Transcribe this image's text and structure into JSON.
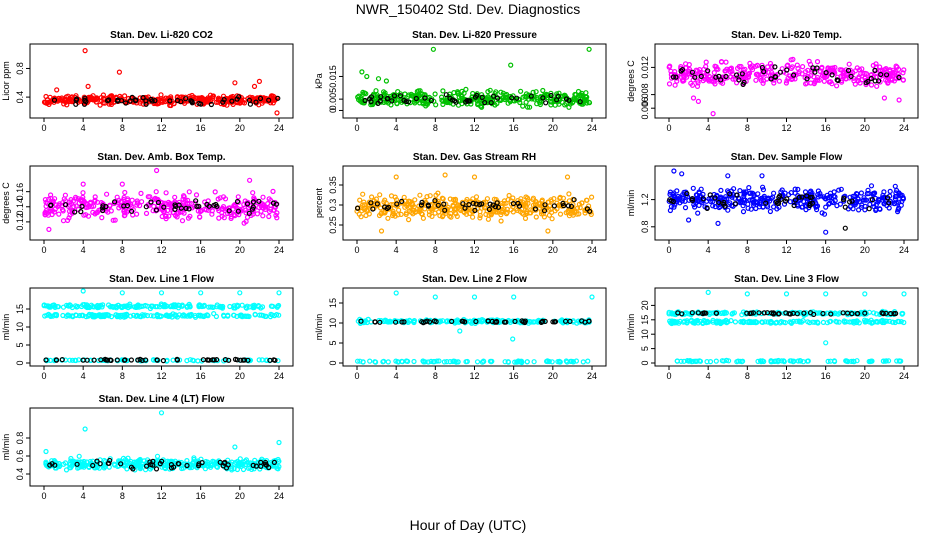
{
  "page": {
    "title": "NWR_150402 Std. Dev. Diagnostics",
    "xlabel": "Hour of Day (UTC)"
  },
  "chart_data": [
    {
      "type": "scatter",
      "title": "Stan. Dev. Li-820 CO2",
      "ylabel": "Licor ppm",
      "xlim": [
        0,
        24
      ],
      "ylim": [
        0.15,
        1.1
      ],
      "xticks": [
        0,
        4,
        8,
        12,
        16,
        20,
        24
      ],
      "yticks": [
        0.4,
        0.8
      ],
      "series": [
        {
          "color": "#ff0000",
          "band": [
            0.27,
            0.45
          ],
          "n": 360,
          "outliers": [
            [
              4.2,
              1.05
            ],
            [
              4.5,
              0.55
            ],
            [
              7.7,
              0.75
            ],
            [
              19.5,
              0.6
            ],
            [
              22.0,
              0.62
            ],
            [
              21.5,
              0.55
            ],
            [
              1.3,
              0.5
            ],
            [
              23.8,
              0.18
            ]
          ]
        },
        {
          "color": "#000000",
          "band": [
            0.28,
            0.42
          ],
          "n": 45,
          "outliers": []
        }
      ]
    },
    {
      "type": "scatter",
      "title": "Stan. Dev. Li-820 Pressure",
      "ylabel": "kPa",
      "xlim": [
        0,
        24
      ],
      "ylim": [
        -0.002,
        0.028
      ],
      "xticks": [
        0,
        4,
        8,
        12,
        16,
        20,
        24
      ],
      "yticks": [
        0.0,
        0.005,
        0.015
      ],
      "series": [
        {
          "color": "#00c000",
          "band": [
            0.0,
            0.01
          ],
          "n": 360,
          "outliers": [
            [
              7.8,
              0.027
            ],
            [
              15.7,
              0.02
            ],
            [
              23.7,
              0.027
            ],
            [
              0.5,
              0.017
            ],
            [
              1.0,
              0.015
            ],
            [
              2.2,
              0.014
            ],
            [
              3.0,
              0.013
            ]
          ]
        },
        {
          "color": "#000000",
          "band": [
            0.002,
            0.008
          ],
          "n": 45,
          "outliers": []
        }
      ]
    },
    {
      "type": "scatter",
      "title": "Stan. Dev. Li-820 Temp.",
      "ylabel": "degrees C",
      "xlim": [
        0,
        24
      ],
      "ylim": [
        0.005,
        0.015
      ],
      "xticks": [
        0,
        4,
        8,
        12,
        16,
        20,
        24
      ],
      "yticks": [
        0.006,
        0.008,
        0.012
      ],
      "series": [
        {
          "color": "#ff00ff",
          "band": [
            0.0085,
            0.0135
          ],
          "n": 360,
          "outliers": [
            [
              4.5,
              0.0052
            ],
            [
              2.5,
              0.0075
            ],
            [
              3.0,
              0.007
            ],
            [
              22.0,
              0.0075
            ],
            [
              23.5,
              0.0072
            ]
          ]
        },
        {
          "color": "#000000",
          "band": [
            0.0088,
            0.0128
          ],
          "n": 45,
          "outliers": []
        }
      ]
    },
    {
      "type": "scatter",
      "title": "Stan. Dev. Amb. Box Temp.",
      "ylabel": "degrees C",
      "xlim": [
        0,
        24
      ],
      "ylim": [
        0.1,
        0.19
      ],
      "xticks": [
        0,
        4,
        8,
        12,
        16,
        20,
        24
      ],
      "yticks": [
        0.12,
        0.14,
        0.16
      ],
      "series": [
        {
          "color": "#ff00ff",
          "band": [
            0.115,
            0.165
          ],
          "n": 360,
          "outliers": [
            [
              11.5,
              0.188
            ],
            [
              8.0,
              0.17
            ],
            [
              21.0,
              0.175
            ],
            [
              4.0,
              0.17
            ],
            [
              0.5,
              0.11
            ]
          ]
        },
        {
          "color": "#000000",
          "band": [
            0.125,
            0.155
          ],
          "n": 45,
          "outliers": []
        }
      ]
    },
    {
      "type": "scatter",
      "title": "Stan. Dev. Gas Stream RH",
      "ylabel": "percent",
      "xlim": [
        0,
        24
      ],
      "ylim": [
        0.22,
        0.39
      ],
      "xticks": [
        0,
        4,
        8,
        12,
        16,
        20,
        24
      ],
      "yticks": [
        0.25,
        0.3,
        0.35
      ],
      "series": [
        {
          "color": "#ffa500",
          "band": [
            0.255,
            0.335
          ],
          "n": 380,
          "outliers": [
            [
              4.0,
              0.37
            ],
            [
              9.0,
              0.375
            ],
            [
              12.0,
              0.37
            ],
            [
              21.5,
              0.37
            ],
            [
              2.5,
              0.235
            ],
            [
              19.5,
              0.235
            ]
          ]
        },
        {
          "color": "#000000",
          "band": [
            0.27,
            0.325
          ],
          "n": 45,
          "outliers": []
        }
      ]
    },
    {
      "type": "scatter",
      "title": "Stan. Dev. Sample Flow",
      "ylabel": "ml/min",
      "xlim": [
        0,
        24
      ],
      "ylim": [
        0.65,
        1.65
      ],
      "xticks": [
        0,
        4,
        8,
        12,
        16,
        20,
        24
      ],
      "yticks": [
        0.8,
        1.2
      ],
      "series": [
        {
          "color": "#0000ff",
          "band": [
            0.95,
            1.45
          ],
          "n": 360,
          "outliers": [
            [
              0.5,
              1.62
            ],
            [
              1.3,
              1.58
            ],
            [
              6.0,
              1.55
            ],
            [
              9.5,
              1.55
            ],
            [
              16.0,
              0.72
            ],
            [
              2.0,
              0.9
            ],
            [
              5.0,
              0.85
            ]
          ]
        },
        {
          "color": "#000000",
          "band": [
            1.0,
            1.35
          ],
          "n": 45,
          "outliers": [
            [
              18.0,
              0.78
            ]
          ]
        }
      ]
    },
    {
      "type": "scatter",
      "title": "Stan. Dev. Line 1 Flow",
      "ylabel": "ml/min",
      "xlim": [
        0,
        24
      ],
      "ylim": [
        0,
        20
      ],
      "xticks": [
        0,
        4,
        8,
        12,
        16,
        20,
        24
      ],
      "yticks": [
        0,
        5,
        10,
        15
      ],
      "series": [
        {
          "color": "#00ffff",
          "band": [
            15.0,
            16.5
          ],
          "n": 160,
          "outliers": [
            [
              4.0,
              20
            ],
            [
              8.0,
              19.5
            ],
            [
              12.0,
              19.5
            ],
            [
              16.0,
              19.5
            ],
            [
              20.0,
              19.5
            ],
            [
              24.0,
              19.5
            ]
          ]
        },
        {
          "color": "#00ffff",
          "band": [
            12.5,
            13.8
          ],
          "n": 160,
          "outliers": []
        },
        {
          "color": "#00ffff",
          "band": [
            0.5,
            1.0
          ],
          "n": 80,
          "outliers": []
        },
        {
          "color": "#000000",
          "band": [
            0.6,
            1.1
          ],
          "n": 45,
          "outliers": []
        }
      ]
    },
    {
      "type": "scatter",
      "title": "Stan. Dev. Line 2 Flow",
      "ylabel": "ml/min",
      "xlim": [
        0,
        24
      ],
      "ylim": [
        0,
        18
      ],
      "xticks": [
        0,
        4,
        8,
        12,
        16,
        20,
        24
      ],
      "yticks": [
        0,
        5,
        10,
        15
      ],
      "series": [
        {
          "color": "#00ffff",
          "band": [
            9.8,
            11.0
          ],
          "n": 200,
          "outliers": [
            [
              4.0,
              17.5
            ],
            [
              8.0,
              16.5
            ],
            [
              12.0,
              16.5
            ],
            [
              16.0,
              16.5
            ],
            [
              24.0,
              16.5
            ],
            [
              10.5,
              8.0
            ],
            [
              15.9,
              6.0
            ]
          ]
        },
        {
          "color": "#00ffff",
          "band": [
            0.1,
            0.6
          ],
          "n": 80,
          "outliers": []
        },
        {
          "color": "#000000",
          "band": [
            10.0,
            10.7
          ],
          "n": 45,
          "outliers": []
        }
      ]
    },
    {
      "type": "scatter",
      "title": "Stan. Dev. Line 3 Flow",
      "ylabel": "ml/min",
      "xlim": [
        0,
        24
      ],
      "ylim": [
        0,
        25
      ],
      "xticks": [
        0,
        4,
        8,
        12,
        16,
        20,
        24
      ],
      "yticks": [
        0,
        5,
        10,
        15,
        20
      ],
      "series": [
        {
          "color": "#00ffff",
          "band": [
            16.5,
            18.0
          ],
          "n": 170,
          "outliers": [
            [
              4.0,
              24.5
            ],
            [
              8.0,
              24
            ],
            [
              12.0,
              24
            ],
            [
              16.0,
              24
            ],
            [
              20.0,
              24
            ],
            [
              24.0,
              24
            ],
            [
              16.0,
              7.0
            ]
          ]
        },
        {
          "color": "#00ffff",
          "band": [
            13.5,
            15.0
          ],
          "n": 160,
          "outliers": []
        },
        {
          "color": "#00ffff",
          "band": [
            0.3,
            1.0
          ],
          "n": 80,
          "outliers": []
        },
        {
          "color": "#000000",
          "band": [
            16.8,
            17.8
          ],
          "n": 45,
          "outliers": []
        }
      ]
    },
    {
      "type": "scatter",
      "title": "Stan. Dev. Line 4 (LT) Flow",
      "ylabel": "ml/min",
      "xlim": [
        0,
        24
      ],
      "ylim": [
        0.3,
        1.1
      ],
      "xticks": [
        0,
        4,
        8,
        12,
        16,
        20,
        24
      ],
      "yticks": [
        0.4,
        0.6,
        0.8
      ],
      "series": [
        {
          "color": "#00ffff",
          "band": [
            0.42,
            0.6
          ],
          "n": 360,
          "outliers": [
            [
              12.0,
              1.08
            ],
            [
              4.2,
              0.9
            ],
            [
              19.5,
              0.7
            ],
            [
              24.0,
              0.75
            ],
            [
              0.2,
              0.65
            ]
          ]
        },
        {
          "color": "#000000",
          "band": [
            0.44,
            0.58
          ],
          "n": 45,
          "outliers": []
        }
      ]
    }
  ]
}
